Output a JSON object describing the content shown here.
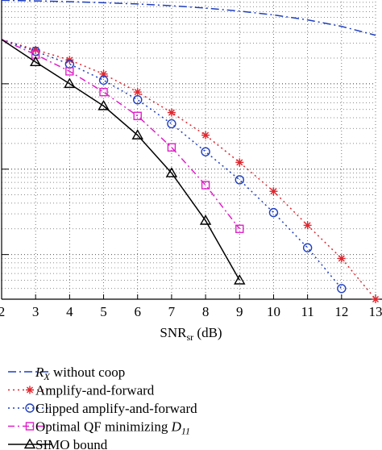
{
  "chart_data": {
    "type": "line",
    "xlabel_main": "SNR",
    "xlabel_sub": "sr",
    "xlabel_unit": "(dB)",
    "x_ticks": [
      "2",
      "3",
      "4",
      "5",
      "6",
      "7",
      "8",
      "9",
      "10",
      "11",
      "12",
      "13"
    ],
    "xlim": [
      2,
      13
    ],
    "y_scale": "log",
    "grid": true,
    "legend_position": "below",
    "series": [
      {
        "name_main": "R",
        "name_sub": "X",
        "name_rest": " without coop",
        "color": "#1f3fbf",
        "dash": "10 4 2 4",
        "marker": "none",
        "x": [
          2,
          3,
          4,
          5,
          6,
          7,
          8,
          9,
          10,
          11,
          12,
          13
        ],
        "y": [
          0.95,
          0.935,
          0.915,
          0.89,
          0.86,
          0.82,
          0.77,
          0.71,
          0.64,
          0.56,
          0.47,
          0.37
        ]
      },
      {
        "name": "Amplify-and-forward",
        "color": "#e0262e",
        "dash": "2 4",
        "marker": "star",
        "x": [
          2,
          3,
          4,
          5,
          6,
          7,
          8,
          9,
          10,
          11,
          12,
          13
        ],
        "y": [
          0.33,
          0.25,
          0.19,
          0.13,
          0.08,
          0.046,
          0.025,
          0.012,
          0.0055,
          0.0022,
          0.0009,
          0.0003
        ]
      },
      {
        "name": "Clipped amplify-and-forward",
        "color": "#1f3fbf",
        "dash": "2 4",
        "marker": "circle",
        "x": [
          2,
          3,
          4,
          5,
          6,
          7,
          8,
          9,
          10,
          11,
          12
        ],
        "y": [
          0.33,
          0.24,
          0.17,
          0.11,
          0.065,
          0.034,
          0.016,
          0.0075,
          0.0031,
          0.0012,
          0.0004
        ]
      },
      {
        "name_main": "Optimal QF minimizing ",
        "name_sub": "11",
        "name_italic": "D",
        "color": "#e020c8",
        "dash": "8 4 2 4",
        "marker": "square",
        "x": [
          2,
          3,
          4,
          5,
          6,
          7,
          8,
          9
        ],
        "y": [
          0.33,
          0.22,
          0.14,
          0.08,
          0.042,
          0.018,
          0.0065,
          0.002
        ]
      },
      {
        "name": "SIMO bound",
        "color": "#000000",
        "dash": "",
        "marker": "triangle",
        "x": [
          2,
          3,
          4,
          5,
          6,
          7,
          8,
          9
        ],
        "y": [
          0.33,
          0.18,
          0.1,
          0.055,
          0.025,
          0.009,
          0.0025,
          0.0005
        ]
      }
    ]
  }
}
